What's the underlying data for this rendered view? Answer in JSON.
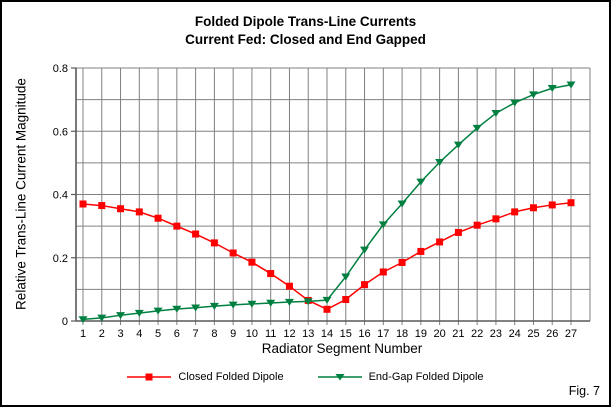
{
  "figure": {
    "title_line1": "Folded Dipole Trans-Line Currents",
    "title_line2": "Current Fed: Closed and End Gapped",
    "fig_label": "Fig. 7"
  },
  "chart_data": {
    "type": "line",
    "title": "Folded Dipole Trans-Line Currents",
    "subtitle": "Current Fed: Closed and End Gapped",
    "xlabel": "Radiator Segment Number",
    "ylabel": "Relative Trans-Line Current Magnitude",
    "categories": [
      1,
      2,
      3,
      4,
      5,
      6,
      7,
      8,
      9,
      10,
      11,
      12,
      13,
      14,
      15,
      16,
      17,
      18,
      19,
      20,
      21,
      22,
      23,
      24,
      25,
      26,
      27
    ],
    "series": [
      {
        "name": "Closed Folded Dipole",
        "color": "#ff0000",
        "marker": "square",
        "values": [
          0.37,
          0.365,
          0.355,
          0.345,
          0.325,
          0.3,
          0.275,
          0.247,
          0.215,
          0.186,
          0.15,
          0.11,
          0.065,
          0.037,
          0.068,
          0.115,
          0.155,
          0.185,
          0.22,
          0.25,
          0.28,
          0.303,
          0.323,
          0.345,
          0.358,
          0.367,
          0.374
        ]
      },
      {
        "name": "End-Gap Folded Dipole",
        "color": "#008040",
        "marker": "triangle-down",
        "values": [
          0.005,
          0.01,
          0.018,
          0.025,
          0.032,
          0.038,
          0.042,
          0.047,
          0.051,
          0.054,
          0.057,
          0.06,
          0.062,
          0.066,
          0.14,
          0.225,
          0.305,
          0.371,
          0.44,
          0.502,
          0.557,
          0.61,
          0.657,
          0.69,
          0.716,
          0.736,
          0.747
        ]
      }
    ],
    "ylim": [
      0,
      0.8
    ],
    "y_major_ticks": [
      0,
      0.2,
      0.4,
      0.6,
      0.8
    ],
    "y_tick_labels": [
      "0",
      "0.2",
      "0.4",
      "0.6",
      "0.8"
    ],
    "y_minor_step": 0.1,
    "grid": true,
    "grid_color": "#808080",
    "axis_color": "#595959",
    "legend_position": "bottom"
  }
}
